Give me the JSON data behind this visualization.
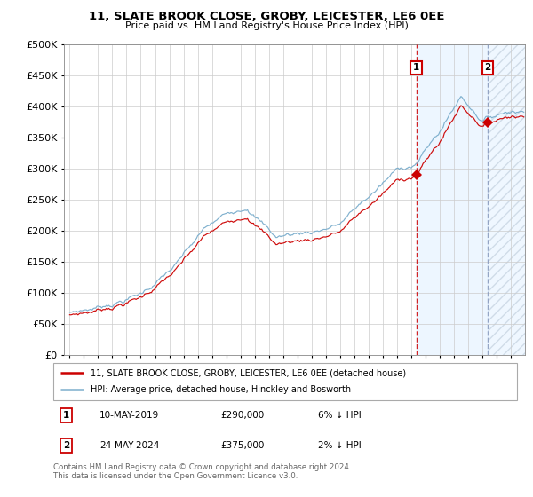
{
  "title": "11, SLATE BROOK CLOSE, GROBY, LEICESTER, LE6 0EE",
  "subtitle": "Price paid vs. HM Land Registry's House Price Index (HPI)",
  "legend_property": "11, SLATE BROOK CLOSE, GROBY, LEICESTER, LE6 0EE (detached house)",
  "legend_hpi": "HPI: Average price, detached house, Hinckley and Bosworth",
  "property_color": "#cc0000",
  "hpi_color": "#7aadcc",
  "sale1_date": "10-MAY-2019",
  "sale1_price": 290000,
  "sale1_label": "6% ↓ HPI",
  "sale2_date": "24-MAY-2024",
  "sale2_price": 375000,
  "sale2_label": "2% ↓ HPI",
  "footer_line1": "Contains HM Land Registry data © Crown copyright and database right 2024.",
  "footer_line2": "This data is licensed under the Open Government Licence v3.0.",
  "ylim_max": 500000,
  "ytick_step": 50000,
  "start_year": 1995,
  "end_year": 2027,
  "sale1_year_f": 2019.36,
  "sale2_year_f": 2024.39,
  "vline1_color": "#cc0000",
  "vline2_color": "#8899bb",
  "bg_between_color": "#ddeeff",
  "bg_future_hatch_color": "#ccdde8"
}
